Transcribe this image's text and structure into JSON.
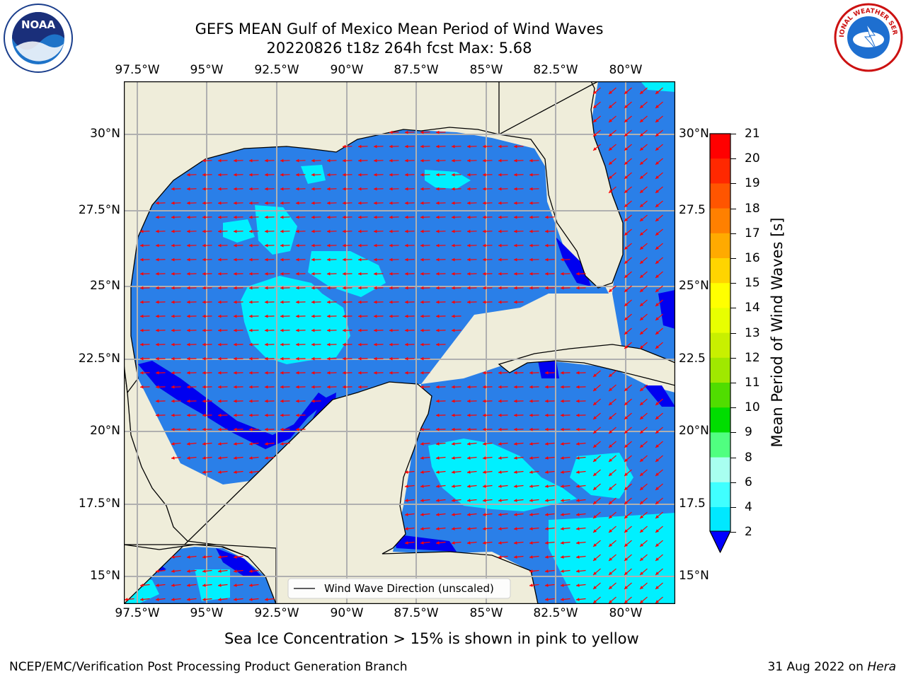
{
  "title": {
    "line1": "GEFS MEAN Gulf of Mexico Mean Period of Wind Waves",
    "line2": "20220826 t18z 264h fcst   Max: 5.68"
  },
  "logos": {
    "left": "noaa-logo",
    "right": "national-weather-service-logo"
  },
  "map": {
    "lon_labels": [
      "97.5°W",
      "95°W",
      "92.5°W",
      "90°W",
      "87.5°W",
      "85°W",
      "82.5°W",
      "80°W"
    ],
    "lat_labels": [
      "30°N",
      "27.5°N",
      "25°N",
      "22.5°N",
      "20°N",
      "17.5°N",
      "15°N"
    ],
    "lat_labels_right": [
      "30°N",
      "27.5",
      "25°N",
      "22.5",
      "20°N",
      "17.5",
      "15°N"
    ],
    "extent": {
      "lon_min": -98.0,
      "lon_max": -78.2,
      "lat_min": 14.0,
      "lat_max": 31.8
    },
    "grid": true,
    "land_color": "#efedda",
    "legend": {
      "label": "Wind Wave Direction (unscaled)",
      "placement": "lower-center"
    },
    "arrow_color": "#ff0000"
  },
  "colorbar": {
    "label": "Mean Period of Wind Waves [s]",
    "ticks": [
      "2",
      "4",
      "6",
      "8",
      "9",
      "10",
      "11",
      "12",
      "13",
      "14",
      "15",
      "16",
      "17",
      "18",
      "19",
      "20",
      "21"
    ],
    "colors": [
      "#0080ff",
      "#00eaff",
      "#40ffff",
      "#80ffff",
      "#a8ffea",
      "#50ff80",
      "#30ee30",
      "#00dd00",
      "#80e000",
      "#c0f000",
      "#e0f800",
      "#ffff00",
      "#ffd000",
      "#ffa800",
      "#ff7800",
      "#ff4800",
      "#ff0000"
    ],
    "under_color": "#0000ff"
  },
  "footer": {
    "ice_note": "Sea Ice Concentration > 15% is shown in pink to yellow",
    "credit": "NCEP/EMC/Verification Post Processing Product Generation Branch",
    "date": "31 Aug 2022 on",
    "machine": "Hera"
  }
}
